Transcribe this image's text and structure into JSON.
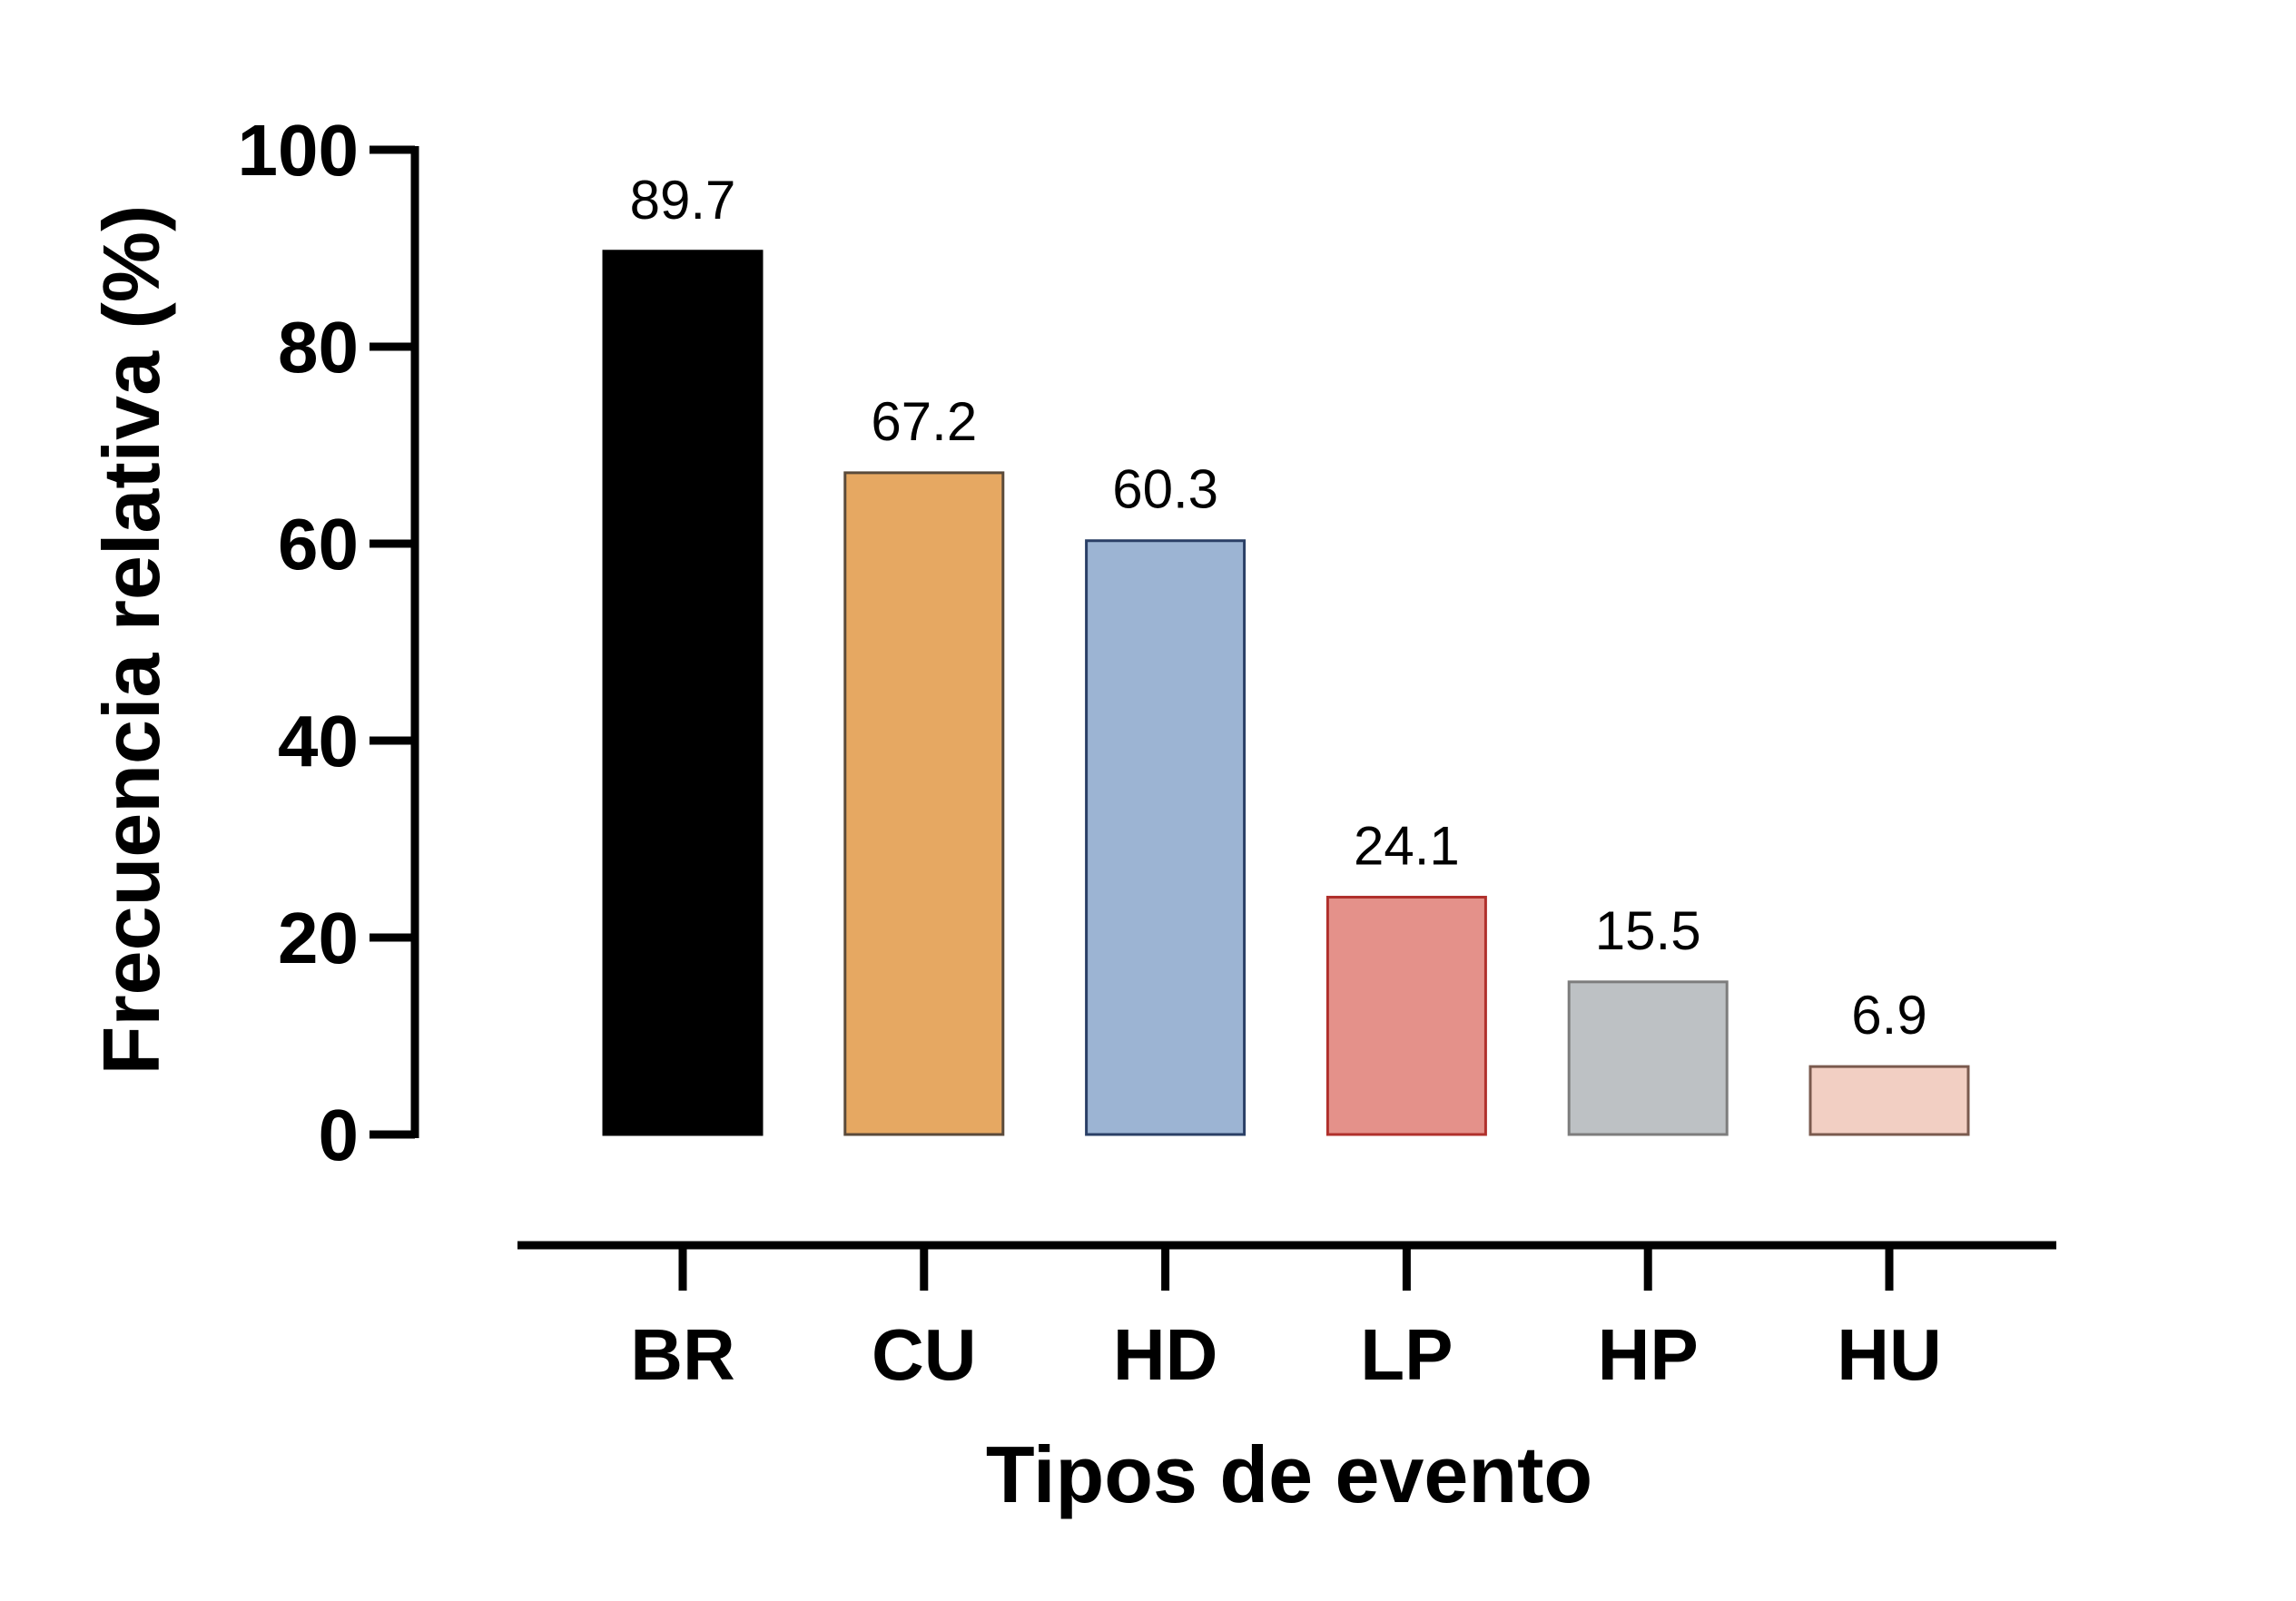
{
  "chart_data": {
    "type": "bar",
    "xlabel": "Tipos de evento",
    "ylabel": "Frecuencia relativa (%)",
    "ylim": [
      0,
      100
    ],
    "yticks": [
      0,
      20,
      40,
      60,
      80,
      100
    ],
    "categories": [
      "BR",
      "CU",
      "HD",
      "LP",
      "HP",
      "HU"
    ],
    "values": [
      89.7,
      67.2,
      60.3,
      24.1,
      15.5,
      6.9
    ],
    "value_labels": [
      "89.7",
      "67.2",
      "60.3",
      "24.1",
      "15.5",
      "6.9"
    ],
    "bar_fill": [
      "#000000",
      "#e6a862",
      "#9cb4d3",
      "#e4918a",
      "#bdc1c4",
      "#f2cfc3"
    ],
    "bar_stroke": [
      "#000000",
      "#5a4a3a",
      "#2a3f66",
      "#b0302c",
      "#7d7d7d",
      "#7a5a4e"
    ],
    "grid": false,
    "legend": "none"
  }
}
